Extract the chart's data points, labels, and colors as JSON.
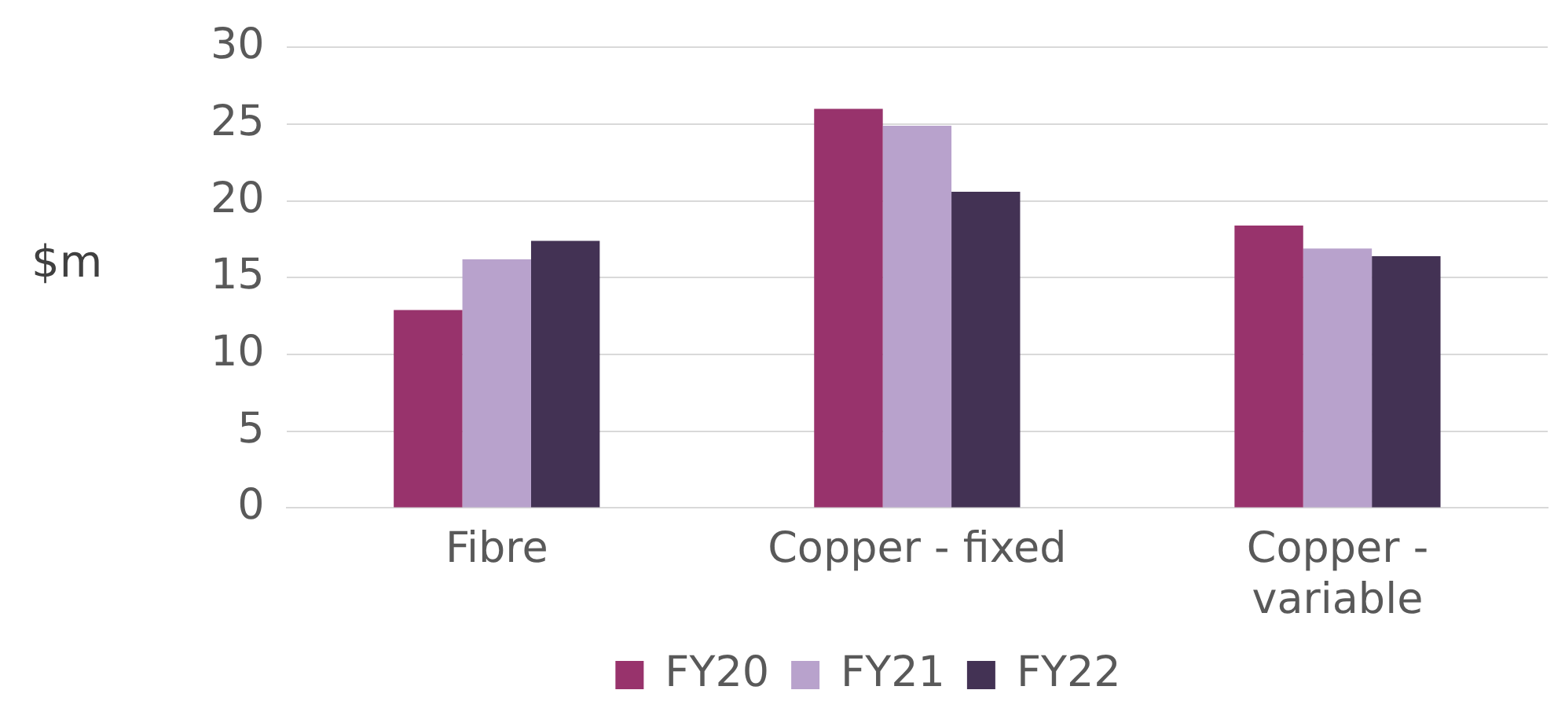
{
  "chart_data": {
    "type": "bar",
    "ylabel": "$m",
    "categories": [
      "Fibre",
      "Copper - fixed",
      "Copper - variable"
    ],
    "series": [
      {
        "name": "FY20",
        "color": "#98336c",
        "values": [
          12.9,
          26.0,
          18.4
        ]
      },
      {
        "name": "FY21",
        "color": "#b8a2cc",
        "values": [
          16.2,
          24.9,
          16.9
        ]
      },
      {
        "name": "FY22",
        "color": "#433254",
        "values": [
          17.4,
          20.6,
          16.4
        ]
      }
    ],
    "ylim": [
      0,
      30
    ],
    "yticks": [
      0,
      5,
      10,
      15,
      20,
      25,
      30
    ],
    "grid": "y",
    "legend": "bottom"
  }
}
